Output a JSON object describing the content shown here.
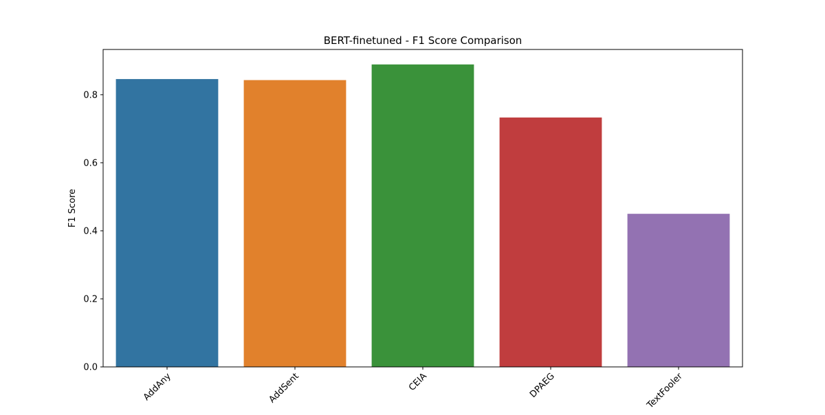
{
  "chart_data": {
    "type": "bar",
    "title": "BERT-finetuned - F1 Score Comparison",
    "xlabel": "",
    "ylabel": "F1 Score",
    "categories": [
      "AddAny",
      "AddSent",
      "CEIA",
      "DPAEG",
      "TextFooler"
    ],
    "values": [
      0.846,
      0.843,
      0.889,
      0.733,
      0.45
    ],
    "colors": [
      "#3274a1",
      "#e1812c",
      "#3a923a",
      "#c03d3e",
      "#9372b2"
    ],
    "ylim": [
      0,
      0.933
    ],
    "yticks": [
      0.0,
      0.2,
      0.4,
      0.6,
      0.8
    ],
    "ytick_labels": [
      "0.0",
      "0.2",
      "0.4",
      "0.6",
      "0.8"
    ],
    "grid": false,
    "legend": "none"
  }
}
